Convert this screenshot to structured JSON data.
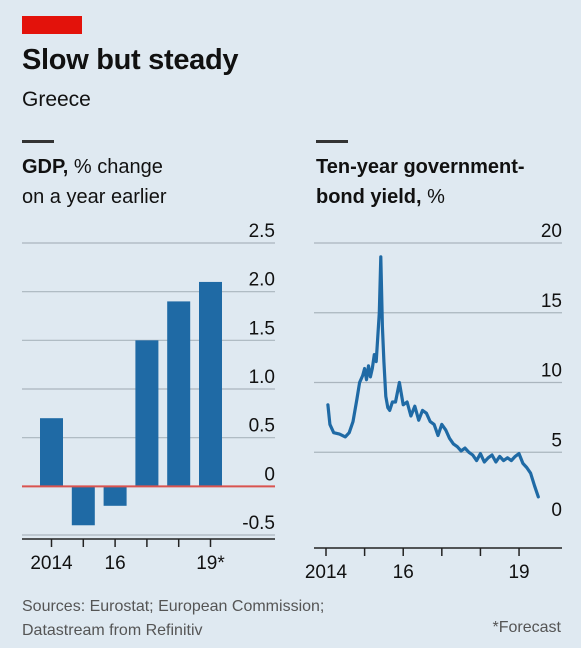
{
  "header": {
    "title": "Slow but steady",
    "subtitle": "Greece",
    "accent_color": "#e3120b"
  },
  "chart_data": [
    {
      "type": "bar",
      "title_bold": "GDP,",
      "title_rest": " % change on a year earlier",
      "title_line1_bold": "GDP,",
      "title_line1_rest": " % change",
      "title_line2": "on a year earlier",
      "categories": [
        "2014",
        "2015",
        "2016",
        "2017",
        "2018",
        "2019*"
      ],
      "values": [
        0.7,
        -0.4,
        -0.2,
        1.5,
        1.9,
        2.1
      ],
      "ylim": [
        -0.5,
        2.5
      ],
      "yticks": [
        2.5,
        2.0,
        1.5,
        1.0,
        0.5,
        0,
        -0.5
      ],
      "ytick_labels": [
        "2.5",
        "2.0",
        "1.5",
        "1.0",
        "0.5",
        "0",
        "-0.5"
      ],
      "xtick_labels": [
        "2014",
        "16",
        "19*"
      ],
      "xtick_index": [
        0,
        2,
        5
      ],
      "bar_color": "#1f6aa5",
      "zero_line_color": "#d9534f",
      "grid": true
    },
    {
      "type": "line",
      "title_line1_bold": "Ten-year government-",
      "title_line2_bold": "bond yield,",
      "title_line2_rest": " %",
      "xlim": [
        2014.0,
        2019.75
      ],
      "ylim": [
        0,
        20
      ],
      "yticks": [
        20,
        15,
        10,
        5,
        0
      ],
      "ytick_labels": [
        "20",
        "15",
        "10",
        "5",
        "0"
      ],
      "xticks": [
        2014,
        2015,
        2016,
        2017,
        2018,
        2019
      ],
      "xtick_labels": [
        "2014",
        "16",
        "19"
      ],
      "xtick_label_values": [
        2014,
        2016,
        2019
      ],
      "line_color": "#1f6aa5",
      "grid": true,
      "x": [
        2014.05,
        2014.1,
        2014.2,
        2014.35,
        2014.5,
        2014.6,
        2014.7,
        2014.8,
        2014.87,
        2014.95,
        2015.0,
        2015.05,
        2015.1,
        2015.15,
        2015.2,
        2015.25,
        2015.3,
        2015.38,
        2015.42,
        2015.46,
        2015.5,
        2015.55,
        2015.6,
        2015.65,
        2015.72,
        2015.8,
        2015.9,
        2016.0,
        2016.1,
        2016.2,
        2016.3,
        2016.4,
        2016.5,
        2016.6,
        2016.7,
        2016.8,
        2016.9,
        2017.0,
        2017.1,
        2017.2,
        2017.3,
        2017.4,
        2017.5,
        2017.6,
        2017.7,
        2017.8,
        2017.9,
        2018.0,
        2018.1,
        2018.2,
        2018.3,
        2018.4,
        2018.5,
        2018.6,
        2018.7,
        2018.8,
        2018.9,
        2019.0,
        2019.1,
        2019.2,
        2019.3,
        2019.4,
        2019.5
      ],
      "values": [
        8.4,
        7.0,
        6.4,
        6.3,
        6.1,
        6.4,
        7.2,
        8.8,
        10.0,
        10.5,
        11.0,
        10.2,
        11.2,
        10.4,
        11.0,
        12.0,
        11.5,
        15.0,
        19.0,
        14.0,
        11.5,
        9.0,
        8.2,
        8.0,
        8.6,
        8.6,
        10.0,
        8.4,
        8.6,
        7.6,
        8.3,
        7.3,
        8.0,
        7.8,
        7.2,
        7.0,
        6.2,
        7.0,
        6.6,
        6.0,
        5.6,
        5.4,
        5.1,
        5.3,
        5.0,
        4.8,
        4.4,
        4.9,
        4.3,
        4.6,
        4.8,
        4.3,
        4.7,
        4.4,
        4.6,
        4.4,
        4.7,
        4.9,
        4.2,
        3.9,
        3.5,
        2.6,
        1.8
      ]
    }
  ],
  "footer": {
    "sources_line1": "Sources: Eurostat; European Commission;",
    "sources_line2": "Datastream from Refinitiv",
    "footnote": "*Forecast"
  }
}
